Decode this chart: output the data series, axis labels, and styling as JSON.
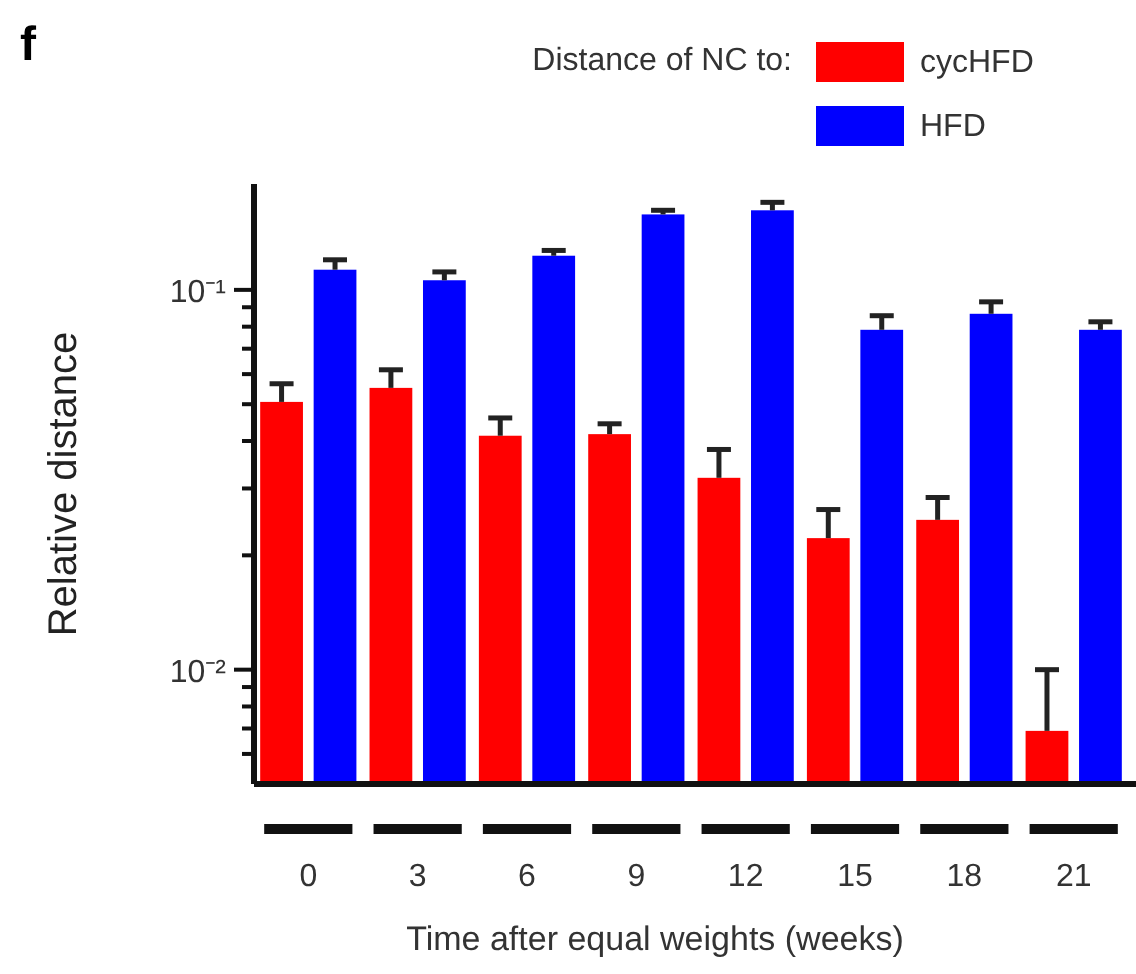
{
  "chart_data": {
    "type": "bar",
    "title": "f",
    "legend_title": "Distance of NC to:",
    "xlabel": "Time after equal weights (weeks)",
    "ylabel": "Relative distance",
    "categories": [
      "0",
      "3",
      "6",
      "9",
      "12",
      "15",
      "18",
      "21"
    ],
    "series": [
      {
        "name": "cycHFD",
        "color": "#ff0000",
        "values": [
          0.0507,
          0.0552,
          0.0413,
          0.0417,
          0.032,
          0.0222,
          0.0248,
          0.0069
        ],
        "errors": [
          [
            0.0507,
            0.0566
          ],
          [
            0.0552,
            0.0616
          ],
          [
            0.0413,
            0.046
          ],
          [
            0.0417,
            0.0444
          ],
          [
            0.032,
            0.038
          ],
          [
            0.0222,
            0.0264
          ],
          [
            0.0248,
            0.0284
          ],
          [
            0.0069,
            0.01
          ]
        ]
      },
      {
        "name": "HFD",
        "color": "#0000ff",
        "values": [
          0.113,
          0.106,
          0.123,
          0.158,
          0.162,
          0.0785,
          0.0865,
          0.0785
        ],
        "errors": [
          [
            0.113,
            0.12
          ],
          [
            0.106,
            0.1115
          ],
          [
            0.123,
            0.127
          ],
          [
            0.158,
            0.162
          ],
          [
            0.162,
            0.17
          ],
          [
            0.0785,
            0.0855
          ],
          [
            0.0865,
            0.093
          ],
          [
            0.0785,
            0.0824
          ]
        ]
      }
    ],
    "log": true,
    "ylim": [
      0.005,
      0.19
    ],
    "yticks": [
      {
        "value": 0.006,
        "label": null
      },
      {
        "value": 0.007,
        "label": null
      },
      {
        "value": 0.008,
        "label": null
      },
      {
        "value": 0.009,
        "label": null
      },
      {
        "value": 0.01,
        "label": "10⁻²"
      },
      {
        "value": 0.02,
        "label": null
      },
      {
        "value": 0.03,
        "label": null
      },
      {
        "value": 0.04,
        "label": null
      },
      {
        "value": 0.05,
        "label": null
      },
      {
        "value": 0.06,
        "label": null
      },
      {
        "value": 0.07,
        "label": null
      },
      {
        "value": 0.08,
        "label": null
      },
      {
        "value": 0.09,
        "label": null
      },
      {
        "value": 0.1,
        "label": "10⁻¹"
      }
    ],
    "legend": "top right"
  }
}
